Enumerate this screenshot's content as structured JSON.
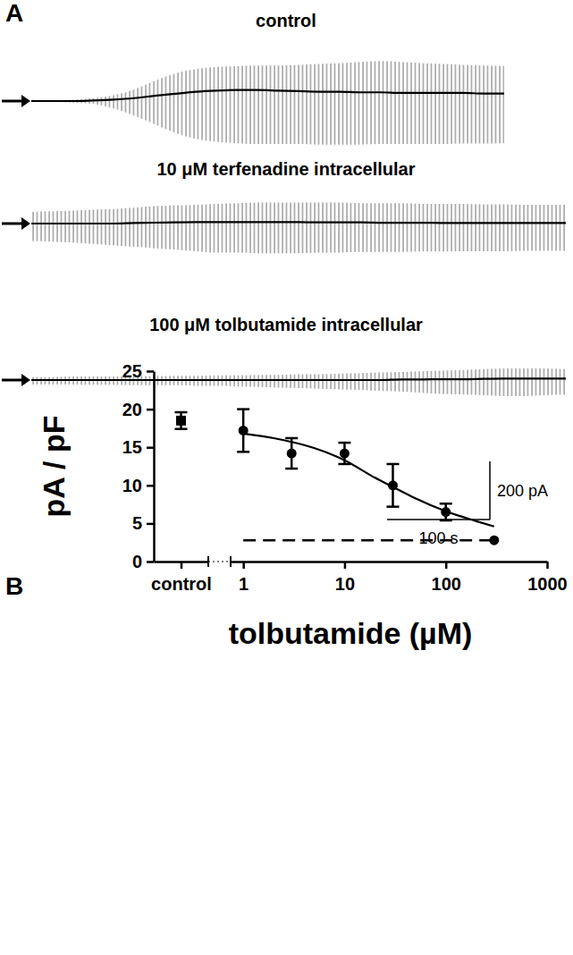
{
  "chart_data": [
    {
      "type": "trace",
      "panel": "A",
      "title": "control",
      "x": [
        0,
        20,
        40,
        60,
        80,
        100,
        120,
        140,
        160,
        180,
        200,
        220,
        240,
        260,
        280,
        300,
        320,
        340,
        360,
        380,
        400,
        420,
        440,
        460
      ],
      "values": [
        0,
        0,
        0,
        2,
        5,
        10,
        18,
        25,
        32,
        36,
        38,
        38,
        36,
        34,
        32,
        32,
        30,
        30,
        28,
        28,
        28,
        28,
        26,
        26
      ],
      "upper": [
        3,
        3,
        5,
        10,
        20,
        40,
        70,
        95,
        110,
        118,
        120,
        122,
        122,
        125,
        128,
        130,
        135,
        138,
        135,
        130,
        128,
        125,
        122,
        120
      ],
      "lower": [
        -3,
        -3,
        -5,
        -10,
        -25,
        -50,
        -80,
        -110,
        -130,
        -140,
        -145,
        -148,
        -148,
        -148,
        -150,
        -150,
        -150,
        -148,
        -148,
        -148,
        -148,
        -146,
        -146,
        -145
      ],
      "color": "#000000",
      "xlim": [
        0,
        470
      ],
      "ylim": [
        -200,
        200
      ],
      "tick_labels": false
    },
    {
      "type": "trace",
      "title": "10 μM terfenadine intracellular",
      "x": [
        0,
        20,
        40,
        60,
        80,
        100,
        120,
        140,
        160,
        180,
        200,
        220,
        240,
        260,
        280,
        300,
        320,
        340,
        360,
        380,
        400,
        420,
        440,
        460,
        480,
        500,
        520
      ],
      "values": [
        0,
        0,
        0,
        0,
        0,
        2,
        3,
        4,
        5,
        5,
        5,
        5,
        5,
        5,
        4,
        4,
        4,
        3,
        3,
        3,
        2,
        2,
        2,
        2,
        2,
        2,
        2
      ],
      "upper": [
        40,
        42,
        45,
        48,
        50,
        55,
        60,
        62,
        65,
        68,
        70,
        72,
        72,
        72,
        72,
        72,
        70,
        70,
        70,
        68,
        68,
        68,
        66,
        66,
        65,
        65,
        65
      ],
      "lower": [
        -60,
        -62,
        -65,
        -70,
        -75,
        -80,
        -85,
        -90,
        -95,
        -100,
        -100,
        -102,
        -102,
        -102,
        -100,
        -100,
        -98,
        -98,
        -98,
        -96,
        -96,
        -95,
        -95,
        -95,
        -94,
        -94,
        -94
      ],
      "color": "#000000",
      "xlim": [
        0,
        525
      ],
      "ylim": [
        -200,
        200
      ],
      "tick_labels": false
    },
    {
      "type": "trace",
      "title": "100 μM tolbutamide intracellular",
      "x": [
        0,
        20,
        40,
        60,
        80,
        100,
        120,
        140,
        160,
        180,
        200,
        220,
        240,
        260,
        280,
        300,
        320,
        340,
        360,
        380,
        400,
        420,
        440,
        460,
        480,
        500,
        520
      ],
      "values": [
        0,
        0,
        0,
        0,
        0,
        0,
        0,
        0,
        0,
        0,
        0,
        0,
        0,
        0,
        0,
        0,
        0,
        0,
        2,
        2,
        3,
        3,
        4,
        5,
        5,
        5,
        5
      ],
      "upper": [
        10,
        10,
        12,
        12,
        12,
        14,
        14,
        15,
        15,
        16,
        16,
        18,
        18,
        20,
        20,
        22,
        24,
        26,
        28,
        30,
        32,
        35,
        38,
        40,
        40,
        40,
        38
      ],
      "lower": [
        -15,
        -15,
        -15,
        -16,
        -16,
        -18,
        -18,
        -18,
        -20,
        -20,
        -22,
        -24,
        -26,
        -28,
        -30,
        -32,
        -34,
        -38,
        -40,
        -44,
        -48,
        -50,
        -52,
        -55,
        -55,
        -52,
        -50
      ],
      "color": "#000000",
      "xlim": [
        0,
        525
      ],
      "ylim": [
        -200,
        200
      ],
      "tick_labels": false
    },
    {
      "type": "scatter",
      "panel": "B",
      "xlabel": "tolbutamide (µM)",
      "ylabel": "pA / pF",
      "log": "x",
      "xlim": [
        0.75,
        1000
      ],
      "xticks": [
        1,
        10,
        100,
        1000
      ],
      "ylim": [
        0,
        25
      ],
      "yticks": [
        0,
        5,
        10,
        15,
        20,
        25
      ],
      "series": [
        {
          "type": "scatter",
          "marker": "square",
          "categories": [
            "control"
          ],
          "values": [
            18.5
          ],
          "errors": [
            1.1
          ]
        },
        {
          "type": "scatter",
          "marker": "circle",
          "x": [
            1,
            3,
            10,
            30,
            100
          ],
          "values": [
            17.2,
            14.2,
            14.2,
            10.0,
            6.5
          ],
          "errors": [
            2.8,
            2.0,
            1.4,
            2.8,
            1.1
          ]
        },
        {
          "type": "line",
          "line_style": "solid",
          "x": [
            1,
            2,
            3,
            5,
            10,
            20,
            30,
            50,
            100,
            200,
            300
          ],
          "values": [
            16.8,
            16.2,
            15.7,
            14.9,
            13.3,
            11.0,
            9.8,
            8.3,
            6.6,
            5.3,
            4.6
          ]
        },
        {
          "type": "line",
          "line_style": "dashed",
          "x": [
            1,
            300
          ],
          "values": [
            2.8,
            2.8
          ]
        },
        {
          "type": "scatter",
          "marker": "circle",
          "x": [
            300
          ],
          "values": [
            2.8
          ]
        }
      ]
    }
  ],
  "scale_bar": {
    "y": 200,
    "y_label": "200 pA",
    "x": 100,
    "x_label": "100 s"
  }
}
